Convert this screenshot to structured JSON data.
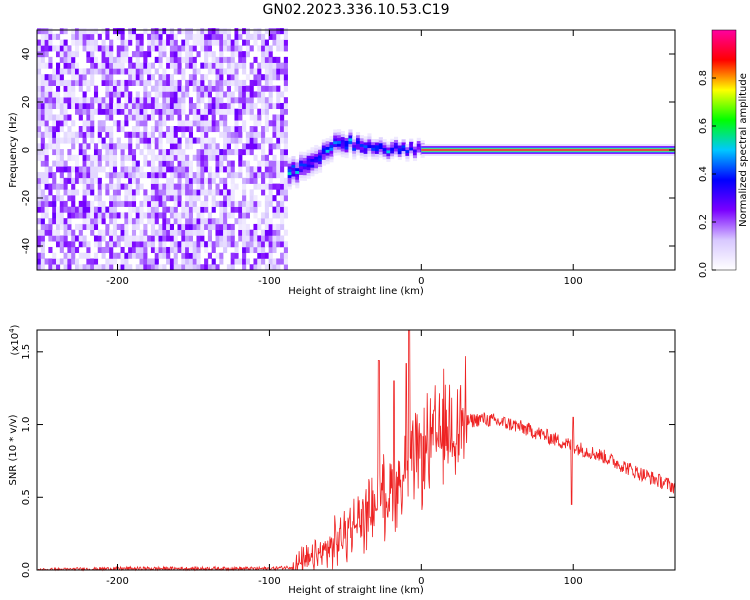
{
  "title": "GN02.2023.336.10.53.C19",
  "chart_data": [
    {
      "type": "heatmap",
      "xlabel": "Height of straight line (km)",
      "ylabel": "Frequency (Hz)",
      "xlim": [
        -253,
        167
      ],
      "ylim": [
        -50,
        50
      ],
      "x_ticks": [
        -200,
        -100,
        0,
        100
      ],
      "y_ticks": [
        -40,
        -20,
        0,
        20,
        40
      ],
      "colorbar": {
        "label": "Normalized spectral amplitude",
        "range": [
          0,
          1
        ],
        "ticks": [
          0.0,
          0.2,
          0.4,
          0.6,
          0.8
        ],
        "colors": [
          "#ffffff",
          "#d8c8ff",
          "#7a00ff",
          "#0000ff",
          "#00c8ff",
          "#00ff00",
          "#ffff00",
          "#ff0000",
          "#ff00a0"
        ]
      },
      "regions": [
        {
          "x": [
            -253,
            -88
          ],
          "description_value": "broadband noise, amplitude ~0.0-0.2 across all frequencies"
        },
        {
          "x": [
            -88,
            0
          ],
          "center_freq_hz": [
            -10,
            -5,
            3,
            0,
            0
          ],
          "center_x": [
            -88,
            -70,
            -55,
            -30,
            0
          ],
          "peak_amplitude": 0.5
        },
        {
          "x": [
            0,
            167
          ],
          "center_freq_hz": 0,
          "peak_amplitude": 0.95
        }
      ]
    },
    {
      "type": "line",
      "xlabel": "Height of straight line (km)",
      "ylabel": "SNR (10 * v/v)",
      "y_scale_label": "(x10",
      "y_scale_exp": "4",
      "y_scale_suffix": ")",
      "xlim": [
        -253,
        167
      ],
      "ylim": [
        0,
        1.65
      ],
      "x_ticks": [
        -200,
        -100,
        0,
        100
      ],
      "y_ticks": [
        "0.0",
        "0.5",
        "1.0",
        "1.5"
      ],
      "color": "#ee2222",
      "series": [
        {
          "x": [
            -253,
            -200,
            -150,
            -100,
            -85,
            -70,
            -60,
            -50,
            -40,
            -30,
            -20,
            -15,
            -10,
            -5,
            0,
            10,
            20,
            30,
            40,
            60,
            80,
            100,
            120,
            140,
            167
          ],
          "y": [
            0.0,
            0.01,
            0.01,
            0.01,
            0.02,
            0.08,
            0.15,
            0.25,
            0.35,
            0.45,
            0.55,
            0.6,
            0.65,
            0.72,
            0.8,
            0.9,
            0.98,
            1.02,
            1.04,
            1.0,
            0.93,
            0.85,
            0.78,
            0.68,
            0.57
          ]
        }
      ],
      "spikes": [
        {
          "x": -28,
          "y": 1.44
        },
        {
          "x": -10,
          "y": 1.42
        },
        {
          "x": -8,
          "y": 1.68
        },
        {
          "x": -18,
          "y": 1.3
        },
        {
          "x": 100,
          "y": 1.05
        },
        {
          "x": 99,
          "y": 0.45
        }
      ]
    }
  ]
}
